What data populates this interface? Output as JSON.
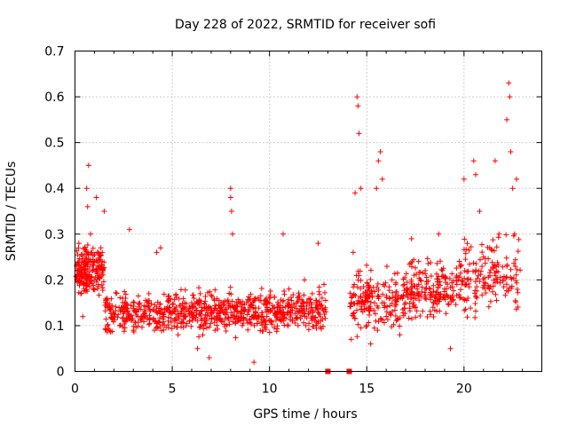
{
  "chart_data": {
    "type": "scatter",
    "title": "Day 228 of 2022, SRMTID for receiver sofi",
    "xlabel": "GPS time / hours",
    "ylabel": "SRMTID / TECUs",
    "xlim": [
      0,
      24
    ],
    "ylim": [
      0,
      0.7
    ],
    "xticks": [
      "0",
      "5",
      "10",
      "15",
      "20"
    ],
    "yticks": [
      "0",
      "0.1",
      "0.2",
      "0.3",
      "0.4",
      "0.5",
      "0.6",
      "0.7"
    ],
    "grid": true,
    "marker": "+",
    "color": "#ff0000",
    "data_gap_hours": [
      13.0,
      14.1
    ],
    "series": [
      {
        "name": "sofi",
        "approx_density_points": 1600,
        "points": [
          [
            0.1,
            0.21
          ],
          [
            0.2,
            0.28
          ],
          [
            0.3,
            0.17
          ],
          [
            0.4,
            0.12
          ],
          [
            0.5,
            0.24
          ],
          [
            0.6,
            0.4
          ],
          [
            0.65,
            0.36
          ],
          [
            0.7,
            0.45
          ],
          [
            0.8,
            0.3
          ],
          [
            0.9,
            0.22
          ],
          [
            1.0,
            0.24
          ],
          [
            1.1,
            0.38
          ],
          [
            1.2,
            0.19
          ],
          [
            1.4,
            0.26
          ],
          [
            1.5,
            0.35
          ],
          [
            1.7,
            0.14
          ],
          [
            2.0,
            0.12
          ],
          [
            2.3,
            0.1
          ],
          [
            2.6,
            0.16
          ],
          [
            2.8,
            0.31
          ],
          [
            3.0,
            0.09
          ],
          [
            3.4,
            0.12
          ],
          [
            3.8,
            0.17
          ],
          [
            4.2,
            0.26
          ],
          [
            4.4,
            0.27
          ],
          [
            4.8,
            0.11
          ],
          [
            5.0,
            0.13
          ],
          [
            5.3,
            0.08
          ],
          [
            5.7,
            0.12
          ],
          [
            6.0,
            0.15
          ],
          [
            6.3,
            0.05
          ],
          [
            6.6,
            0.1
          ],
          [
            6.9,
            0.03
          ],
          [
            7.2,
            0.09
          ],
          [
            7.6,
            0.11
          ],
          [
            8.0,
            0.4
          ],
          [
            8.0,
            0.38
          ],
          [
            8.05,
            0.35
          ],
          [
            8.1,
            0.3
          ],
          [
            8.3,
            0.12
          ],
          [
            8.6,
            0.1
          ],
          [
            9.0,
            0.14
          ],
          [
            9.2,
            0.02
          ],
          [
            9.6,
            0.12
          ],
          [
            10.0,
            0.16
          ],
          [
            10.4,
            0.13
          ],
          [
            10.7,
            0.3
          ],
          [
            11.0,
            0.18
          ],
          [
            11.4,
            0.15
          ],
          [
            11.8,
            0.2
          ],
          [
            12.2,
            0.17
          ],
          [
            12.5,
            0.28
          ],
          [
            12.8,
            0.19
          ],
          [
            12.9,
            0.13
          ],
          [
            14.2,
            0.07
          ],
          [
            14.3,
            0.26
          ],
          [
            14.4,
            0.39
          ],
          [
            14.5,
            0.6
          ],
          [
            14.55,
            0.58
          ],
          [
            14.6,
            0.52
          ],
          [
            14.7,
            0.4
          ],
          [
            14.8,
            0.13
          ],
          [
            15.0,
            0.1
          ],
          [
            15.2,
            0.06
          ],
          [
            15.5,
            0.4
          ],
          [
            15.6,
            0.46
          ],
          [
            15.7,
            0.48
          ],
          [
            15.8,
            0.42
          ],
          [
            16.0,
            0.12
          ],
          [
            16.3,
            0.2
          ],
          [
            16.7,
            0.08
          ],
          [
            17.0,
            0.15
          ],
          [
            17.3,
            0.29
          ],
          [
            17.6,
            0.18
          ],
          [
            18.0,
            0.22
          ],
          [
            18.4,
            0.14
          ],
          [
            18.7,
            0.3
          ],
          [
            19.0,
            0.18
          ],
          [
            19.3,
            0.05
          ],
          [
            19.7,
            0.2
          ],
          [
            20.0,
            0.42
          ],
          [
            20.2,
            0.16
          ],
          [
            20.5,
            0.46
          ],
          [
            20.6,
            0.43
          ],
          [
            20.8,
            0.35
          ],
          [
            21.0,
            0.25
          ],
          [
            21.3,
            0.18
          ],
          [
            21.6,
            0.46
          ],
          [
            21.8,
            0.3
          ],
          [
            22.0,
            0.2
          ],
          [
            22.2,
            0.55
          ],
          [
            22.3,
            0.63
          ],
          [
            22.35,
            0.6
          ],
          [
            22.4,
            0.48
          ],
          [
            22.5,
            0.4
          ],
          [
            22.6,
            0.3
          ],
          [
            22.7,
            0.42
          ]
        ]
      }
    ]
  }
}
